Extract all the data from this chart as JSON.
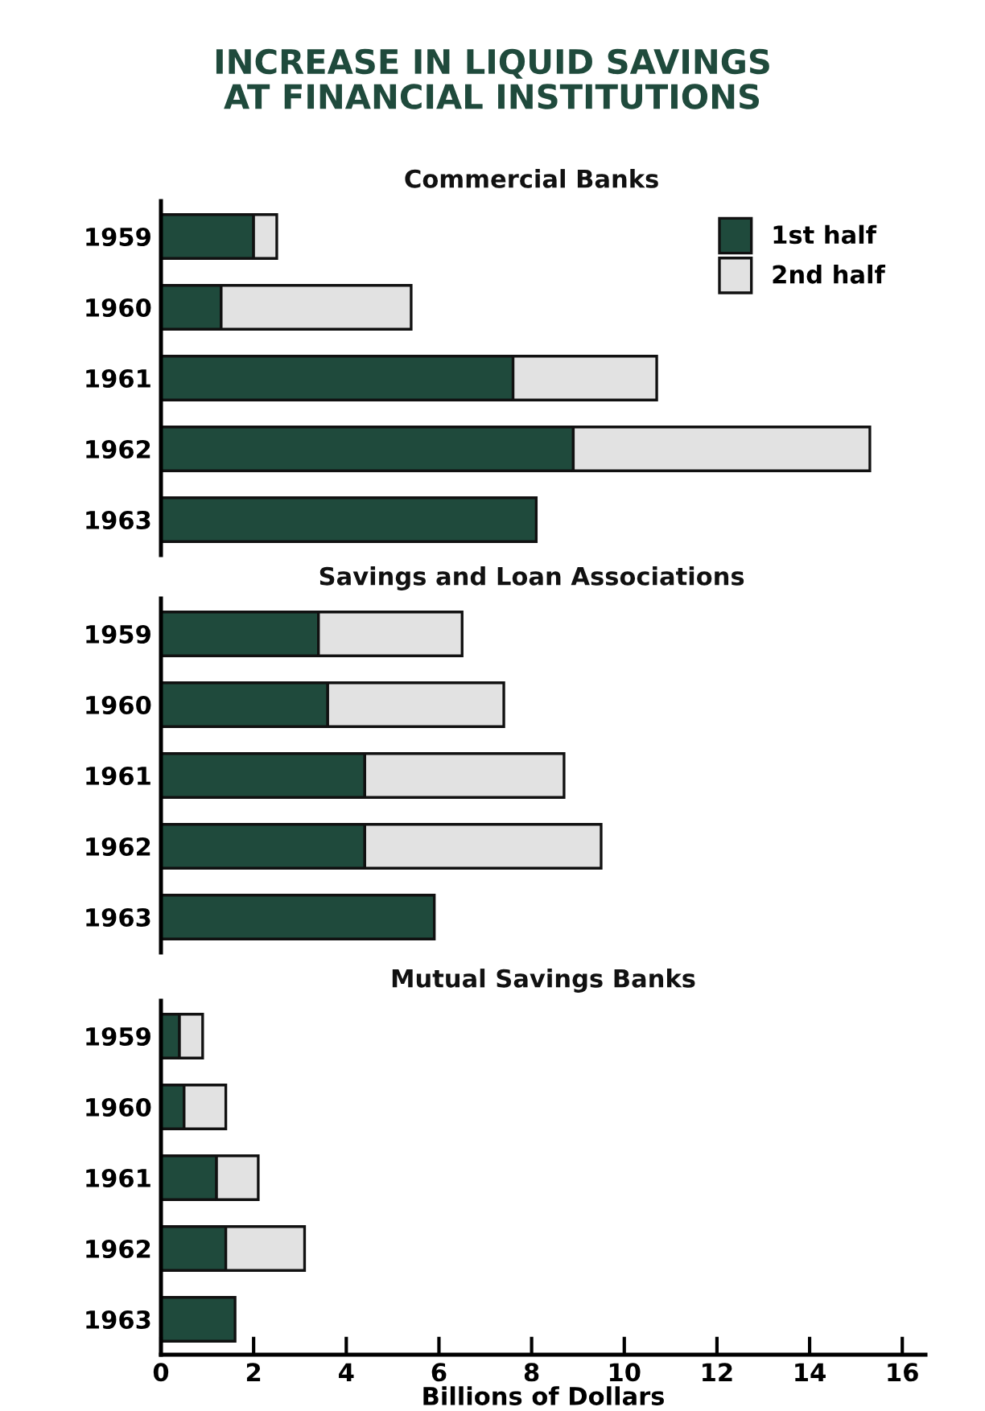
{
  "chart_data": [
    {
      "type": "bar",
      "orientation": "horizontal",
      "stacked": true,
      "title": "INCREASE IN LIQUID SAVINGS\nAT FINANCIAL INSTITUTIONS",
      "subtitle": "Commercial Banks",
      "categories": [
        "1959",
        "1960",
        "1961",
        "1962",
        "1963"
      ],
      "series": [
        {
          "name": "1st half",
          "color": "#1f4a3c",
          "values": [
            2.0,
            1.3,
            7.6,
            8.9,
            8.1
          ]
        },
        {
          "name": "2nd half",
          "color": "#e2e2e2",
          "values": [
            0.5,
            4.1,
            3.1,
            6.4,
            null
          ]
        }
      ],
      "xlim": [
        0,
        16
      ],
      "xticks": [
        0,
        2,
        4,
        6,
        8,
        10,
        12,
        14,
        16
      ],
      "tick_labels": "y",
      "legend": "top right",
      "grid": false
    },
    {
      "type": "bar",
      "orientation": "horizontal",
      "stacked": true,
      "subtitle": "Savings and Loan Associations",
      "categories": [
        "1959",
        "1960",
        "1961",
        "1962",
        "1963"
      ],
      "series": [
        {
          "color": "#1f4a3c",
          "values": [
            3.4,
            3.6,
            4.4,
            4.4,
            5.9
          ]
        },
        {
          "color": "#e2e2e2",
          "values": [
            3.1,
            3.8,
            4.3,
            5.1,
            null
          ]
        }
      ],
      "xlim": [
        0,
        16
      ],
      "xticks": [
        0,
        2,
        4,
        6,
        8,
        10,
        12,
        14,
        16
      ],
      "tick_labels": "y",
      "grid": false
    },
    {
      "type": "bar",
      "orientation": "horizontal",
      "stacked": true,
      "subtitle": "Mutual Savings Banks",
      "xlabel": "Billions of Dollars",
      "categories": [
        "1959",
        "1960",
        "1961",
        "1962",
        "1963"
      ],
      "series": [
        {
          "color": "#1f4a3c",
          "values": [
            0.4,
            0.5,
            1.2,
            1.4,
            1.6
          ]
        },
        {
          "color": "#e2e2e2",
          "values": [
            0.5,
            0.9,
            0.9,
            1.7,
            null
          ]
        }
      ],
      "xlim": [
        0,
        16.5
      ],
      "xticks": [
        0,
        2,
        4,
        6,
        8,
        10,
        12,
        14,
        16
      ],
      "grid": false
    }
  ]
}
